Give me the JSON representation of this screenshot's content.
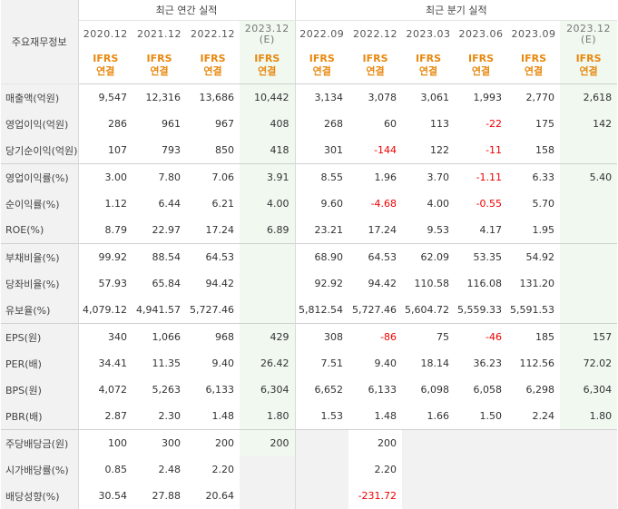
{
  "header": {
    "corner_label": "주요재무정보",
    "annual_group": "최근 연간 실적",
    "quarter_group": "최근 분기 실적",
    "annual_periods": [
      {
        "date": "2020.12",
        "est": ""
      },
      {
        "date": "2021.12",
        "est": ""
      },
      {
        "date": "2022.12",
        "est": ""
      },
      {
        "date": "2023.12",
        "est": "(E)"
      }
    ],
    "quarter_periods": [
      {
        "date": "2022.09",
        "est": ""
      },
      {
        "date": "2022.12",
        "est": ""
      },
      {
        "date": "2023.03",
        "est": ""
      },
      {
        "date": "2023.06",
        "est": ""
      },
      {
        "date": "2023.09",
        "est": ""
      },
      {
        "date": "2023.12",
        "est": "(E)"
      }
    ],
    "ifrs_line1": "IFRS",
    "ifrs_line2": "연결"
  },
  "colors": {
    "ifrs": "#e8880e",
    "negative": "#ee0000",
    "estimate_bg": "#f0f8f0",
    "label_bg": "#f2f2f2"
  },
  "rows": [
    {
      "label": "매출액(억원)",
      "values": [
        "9,547",
        "12,316",
        "13,686",
        "10,442",
        "3,134",
        "3,078",
        "3,061",
        "1,993",
        "2,770",
        "2,618"
      ]
    },
    {
      "label": "영업이익(억원)",
      "values": [
        "286",
        "961",
        "967",
        "408",
        "268",
        "60",
        "113",
        "-22",
        "175",
        "142"
      ]
    },
    {
      "label": "당기순이익(억원)",
      "values": [
        "107",
        "793",
        "850",
        "418",
        "301",
        "-144",
        "122",
        "-11",
        "158",
        ""
      ]
    },
    {
      "label": "영업이익률(%)",
      "values": [
        "3.00",
        "7.80",
        "7.06",
        "3.91",
        "8.55",
        "1.96",
        "3.70",
        "-1.11",
        "6.33",
        "5.40"
      ]
    },
    {
      "label": "순이익률(%)",
      "values": [
        "1.12",
        "6.44",
        "6.21",
        "4.00",
        "9.60",
        "-4.68",
        "4.00",
        "-0.55",
        "5.70",
        ""
      ]
    },
    {
      "label": "ROE(%)",
      "values": [
        "8.79",
        "22.97",
        "17.24",
        "6.89",
        "23.21",
        "17.24",
        "9.53",
        "4.17",
        "1.95",
        ""
      ]
    },
    {
      "label": "부채비율(%)",
      "values": [
        "99.92",
        "88.54",
        "64.53",
        "",
        "68.90",
        "64.53",
        "62.09",
        "53.35",
        "54.92",
        ""
      ]
    },
    {
      "label": "당좌비율(%)",
      "values": [
        "57.93",
        "65.84",
        "94.42",
        "",
        "92.92",
        "94.42",
        "110.58",
        "116.08",
        "131.20",
        ""
      ]
    },
    {
      "label": "유보율(%)",
      "values": [
        "4,079.12",
        "4,941.57",
        "5,727.46",
        "",
        "5,812.54",
        "5,727.46",
        "5,604.72",
        "5,559.33",
        "5,591.53",
        ""
      ]
    },
    {
      "label": "EPS(원)",
      "values": [
        "340",
        "1,066",
        "968",
        "429",
        "308",
        "-86",
        "75",
        "-46",
        "185",
        "157"
      ]
    },
    {
      "label": "PER(배)",
      "values": [
        "34.41",
        "11.35",
        "9.40",
        "26.42",
        "7.51",
        "9.40",
        "18.14",
        "36.23",
        "112.56",
        "72.02"
      ]
    },
    {
      "label": "BPS(원)",
      "values": [
        "4,072",
        "5,263",
        "6,133",
        "6,304",
        "6,652",
        "6,133",
        "6,098",
        "6,058",
        "6,298",
        "6,304"
      ]
    },
    {
      "label": "PBR(배)",
      "values": [
        "2.87",
        "2.30",
        "1.48",
        "1.80",
        "1.53",
        "1.48",
        "1.66",
        "1.50",
        "2.24",
        "1.80"
      ]
    },
    {
      "label": "주당배당금(원)",
      "values": [
        "100",
        "300",
        "200",
        "200",
        "",
        "200",
        "",
        "",
        "",
        ""
      ]
    },
    {
      "label": "시가배당률(%)",
      "values": [
        "0.85",
        "2.48",
        "2.20",
        "",
        "",
        "2.20",
        "",
        "",
        "",
        ""
      ]
    },
    {
      "label": "배당성향(%)",
      "values": [
        "30.54",
        "27.88",
        "20.64",
        "",
        "",
        "-231.72",
        "",
        "",
        "",
        ""
      ]
    }
  ]
}
